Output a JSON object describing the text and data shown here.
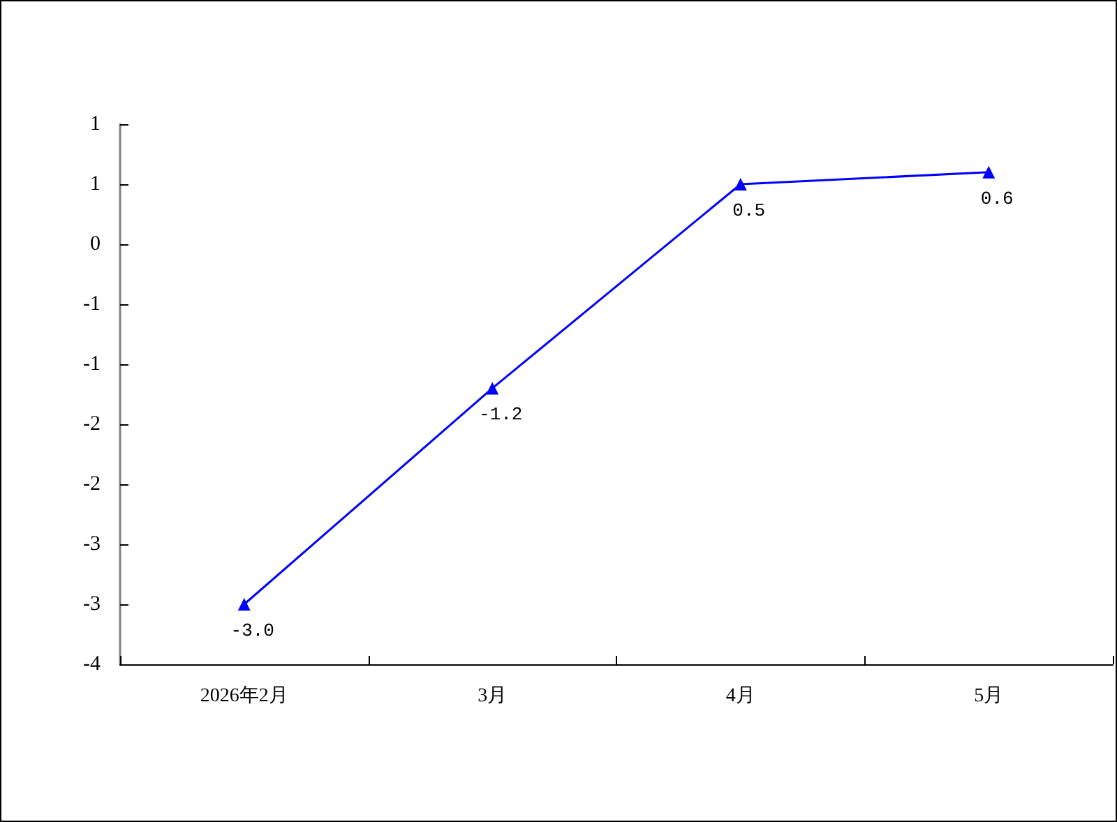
{
  "chart_data": {
    "type": "line",
    "categories": [
      "2026年2月",
      "3月",
      "4月",
      "5月"
    ],
    "series": [
      {
        "color": "#0000ff",
        "values": [
          -3.0,
          -1.2,
          0.5,
          0.6
        ],
        "value_labels": [
          "-3.0",
          "-1.2",
          "0.5",
          "0.6"
        ]
      }
    ],
    "ylim": [
      -3.5,
      1.0
    ],
    "yticks": [
      {
        "value": -3.5,
        "label": "-4"
      },
      -3,
      {
        "value": -2.5,
        "label": "-3"
      },
      -2,
      {
        "value": -1.5,
        "label": "-2"
      },
      -1,
      {
        "value": -0.5,
        "label": "-1"
      },
      0,
      {
        "value": 0.5,
        "label": "1"
      },
      1
    ],
    "grid": false,
    "marker": "triangle",
    "line_style": "solid"
  }
}
